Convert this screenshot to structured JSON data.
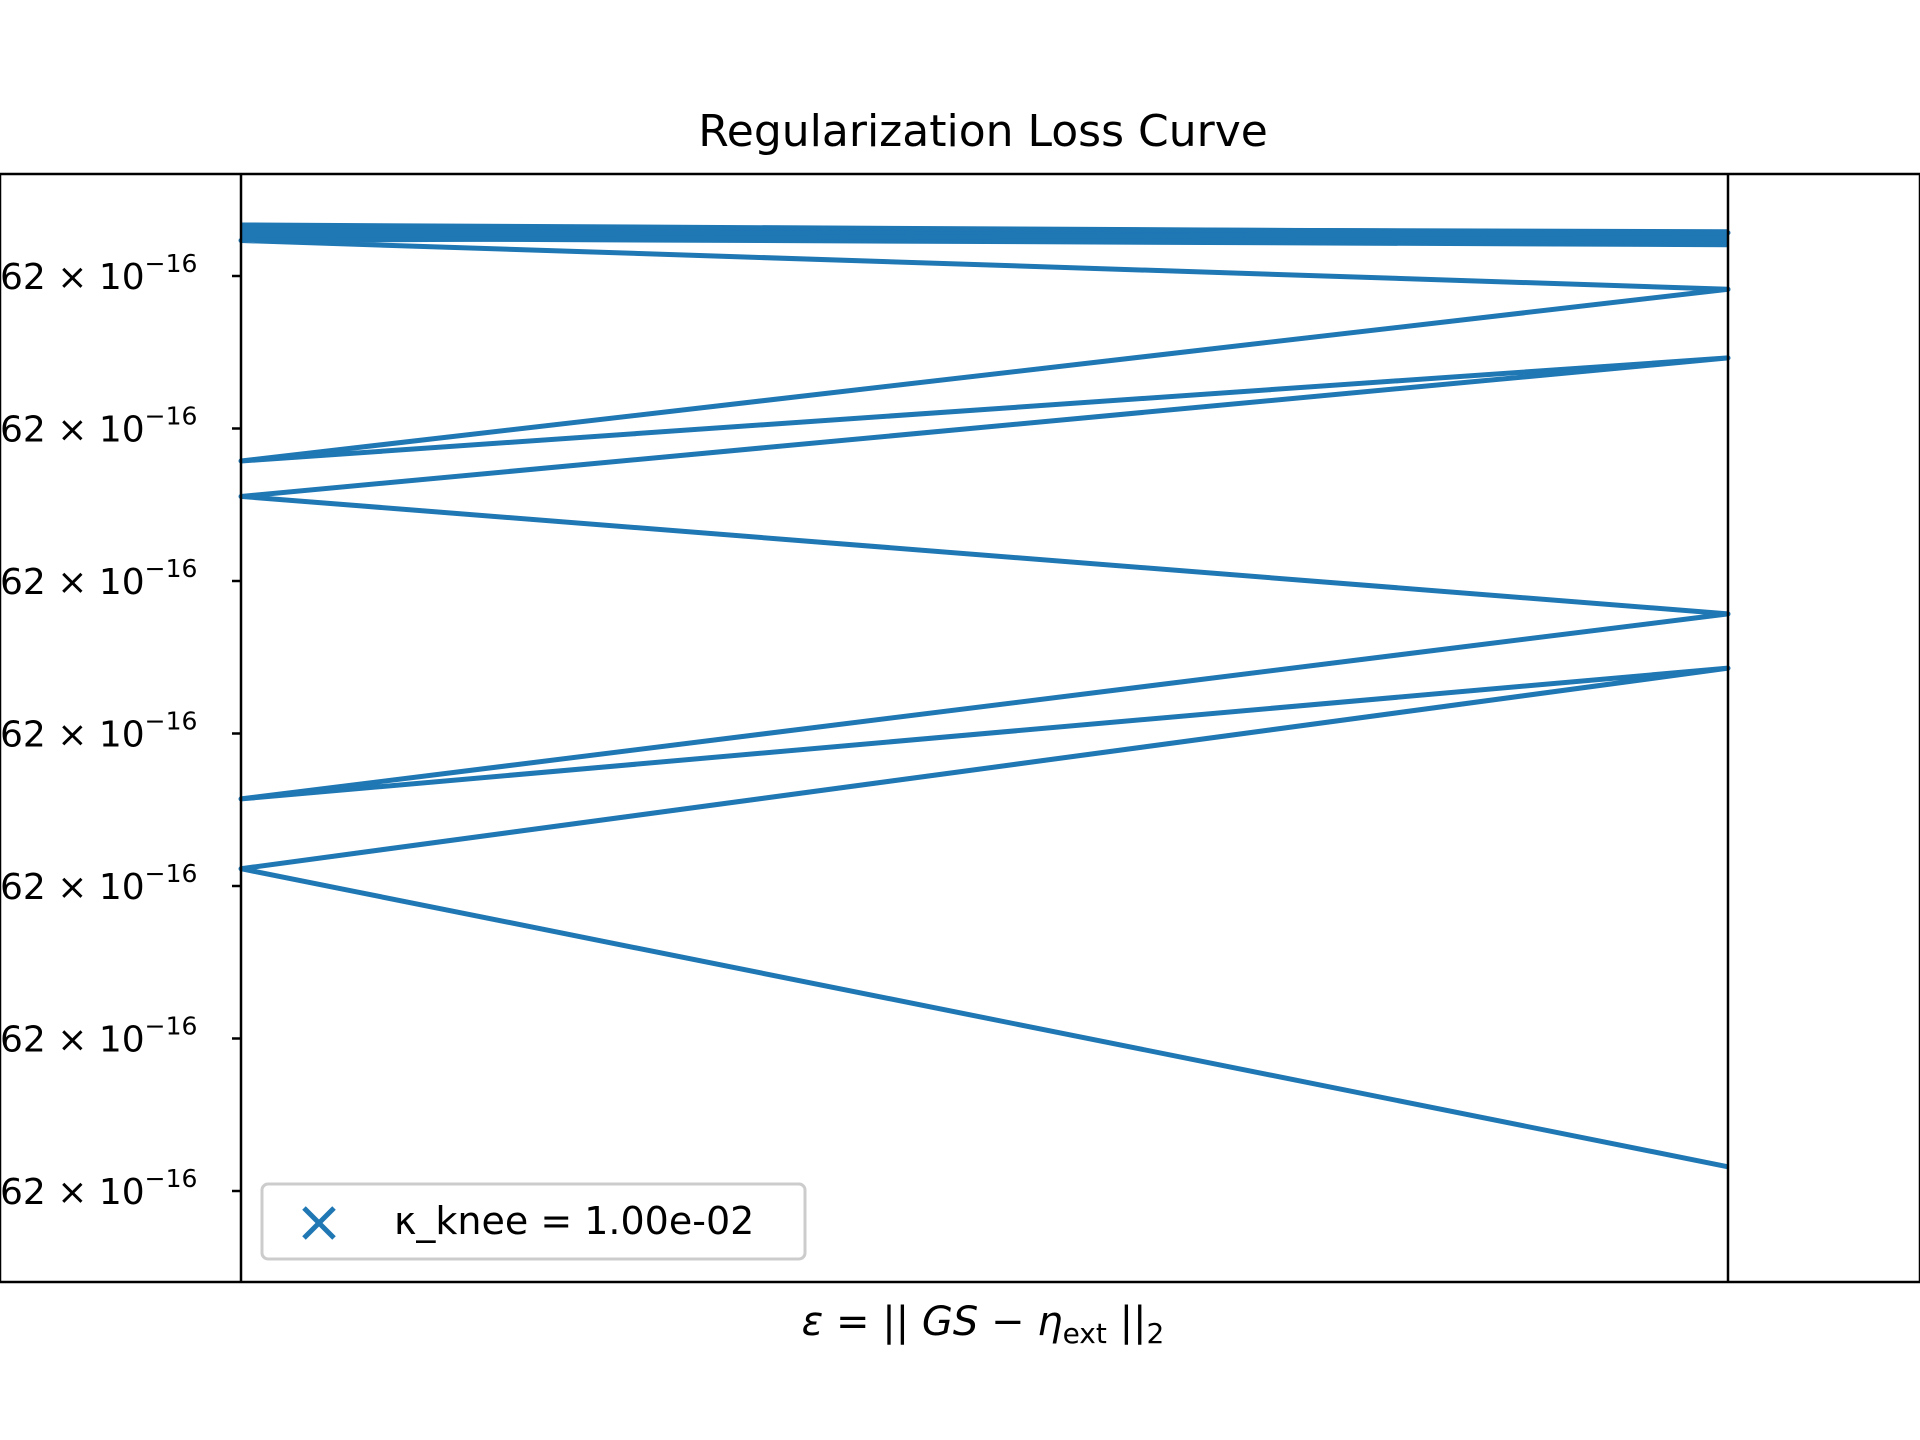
{
  "chart_data": {
    "type": "line",
    "title": "Regularization Loss Curve",
    "xlabel": {
      "prefix": "ε = || GS − η",
      "subscript": "ext",
      "suffix": " ||",
      "suffix_sub": "2"
    },
    "ylabel": "",
    "y_tick_labels": [
      {
        "mantissa": "62 × 10",
        "exponent": "−16"
      },
      {
        "mantissa": "62 × 10",
        "exponent": "−16"
      },
      {
        "mantissa": "62 × 10",
        "exponent": "−16"
      },
      {
        "mantissa": "62 × 10",
        "exponent": "−16"
      },
      {
        "mantissa": "62 × 10",
        "exponent": "−16"
      },
      {
        "mantissa": "62 × 10",
        "exponent": "−16"
      },
      {
        "mantissa": "62 × 10",
        "exponent": "−16"
      }
    ],
    "x_range": [
      0,
      1
    ],
    "y_range": [
      0,
      1
    ],
    "grid": false,
    "series": [
      {
        "color": "#1f77b4",
        "points": [
          [
            0,
            0.954
          ],
          [
            1,
            0.947
          ],
          [
            0,
            0.94
          ],
          [
            1,
            0.896
          ],
          [
            0,
            0.741
          ],
          [
            1,
            0.834
          ],
          [
            0,
            0.709
          ],
          [
            1,
            0.603
          ],
          [
            0,
            0.436
          ],
          [
            1,
            0.554
          ],
          [
            0,
            0.373
          ],
          [
            1,
            0.104
          ]
        ],
        "thick_band": [
          [
            0,
            0.947
          ],
          [
            1,
            0.942
          ]
        ]
      }
    ],
    "legend": {
      "position": "lower-left",
      "marker": "x",
      "entries": [
        "κ_knee = 1.00e-02"
      ]
    }
  }
}
